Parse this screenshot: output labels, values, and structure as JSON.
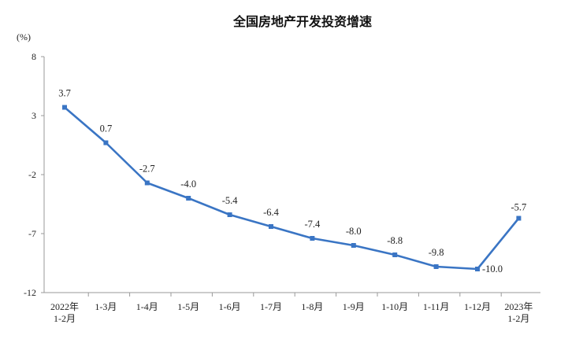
{
  "chart_data": {
    "type": "line",
    "title": "全国房地产开发投资增速",
    "unit_label": "(%)",
    "y_ticks": [
      "8",
      "3",
      "-2",
      "-7",
      "-12"
    ],
    "y_tick_values": [
      8,
      3,
      -2,
      -7,
      -12
    ],
    "ylim": [
      -12,
      8
    ],
    "categories": [
      [
        "2022年",
        "1-2月"
      ],
      [
        "1-3月"
      ],
      [
        "1-4月"
      ],
      [
        "1-5月"
      ],
      [
        "1-6月"
      ],
      [
        "1-7月"
      ],
      [
        "1-8月"
      ],
      [
        "1-9月"
      ],
      [
        "1-10月"
      ],
      [
        "1-11月"
      ],
      [
        "1-12月"
      ],
      [
        "2023年",
        "1-2月"
      ]
    ],
    "values": [
      3.7,
      0.7,
      -2.7,
      -4.0,
      -5.4,
      -6.4,
      -7.4,
      -8.0,
      -8.8,
      -9.8,
      -10.0,
      -5.7
    ],
    "data_labels": [
      "3.7",
      "0.7",
      "-2.7",
      "-4.0",
      "-5.4",
      "-6.4",
      "-7.4",
      "-8.0",
      "-8.8",
      "-9.8",
      "-10.0",
      "-5.7"
    ],
    "line_color": "#3a75c4",
    "axis_color": "#999999",
    "grid": false,
    "legend": "none"
  }
}
